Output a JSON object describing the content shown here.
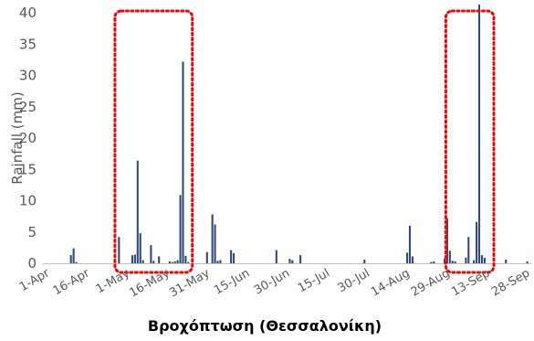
{
  "chart_data": {
    "type": "bar",
    "title": "",
    "xlabel": "Βροχόπτωση (Θεσσαλονίκη)",
    "ylabel": "Rainfall (mm)",
    "ylim": [
      0,
      40
    ],
    "yticks": [
      0,
      5,
      10,
      15,
      20,
      25,
      30,
      35,
      40
    ],
    "x_start": "1-Apr",
    "x_end": "30-Sep",
    "xtick_labels": [
      "1-Apr",
      "16-Apr",
      "1-May",
      "16-May",
      "31-May",
      "15-Jun",
      "30-Jun",
      "15-Jul",
      "30-Jul",
      "14-Aug",
      "29-Aug",
      "13-Sep",
      "28-Sep"
    ],
    "x": [
      "11-Apr",
      "12-Apr",
      "13-Apr",
      "29-Apr",
      "4-May",
      "5-May",
      "6-May",
      "7-May",
      "8-May",
      "11-May",
      "12-May",
      "14-May",
      "18-May",
      "19-May",
      "20-May",
      "21-May",
      "22-May",
      "23-May",
      "24-May",
      "25-May",
      "1-Jun",
      "3-Jun",
      "4-Jun",
      "5-Jun",
      "6-Jun",
      "10-Jun",
      "11-Jun",
      "27-Jun",
      "2-Jul",
      "3-Jul",
      "6-Jul",
      "30-Jul",
      "15-Aug",
      "16-Aug",
      "17-Aug",
      "24-Aug",
      "25-Aug",
      "29-Aug",
      "30-Aug",
      "31-Aug",
      "1-Sep",
      "2-Sep",
      "6-Sep",
      "7-Sep",
      "9-Sep",
      "10-Sep",
      "11-Sep",
      "12-Sep",
      "13-Sep",
      "21-Sep",
      "29-Sep"
    ],
    "values": [
      1.3,
      2.4,
      0.2,
      4.2,
      1.3,
      1.4,
      16.4,
      4.8,
      0.5,
      2.9,
      0.4,
      1.1,
      0.3,
      0.2,
      0.3,
      0.5,
      10.9,
      32.2,
      1.2,
      0.2,
      1.8,
      7.8,
      6.2,
      0.4,
      0.5,
      2.1,
      1.6,
      2.1,
      0.7,
      0.5,
      1.3,
      0.6,
      1.7,
      6.0,
      1.1,
      0.2,
      0.3,
      0.7,
      7.2,
      2.0,
      0.4,
      0.3,
      0.9,
      4.2,
      0.5,
      6.6,
      41.3,
      1.3,
      0.9,
      0.6,
      0.3
    ],
    "bar_color": "#2f4b7c",
    "grid": false,
    "legend": "none",
    "highlight_boxes": [
      {
        "from": "28-Apr",
        "to": "27-May",
        "color": "#ff0000",
        "style": "dotted"
      },
      {
        "from": "30-Aug",
        "to": "17-Sep",
        "color": "#ff0000",
        "style": "dotted"
      }
    ]
  }
}
